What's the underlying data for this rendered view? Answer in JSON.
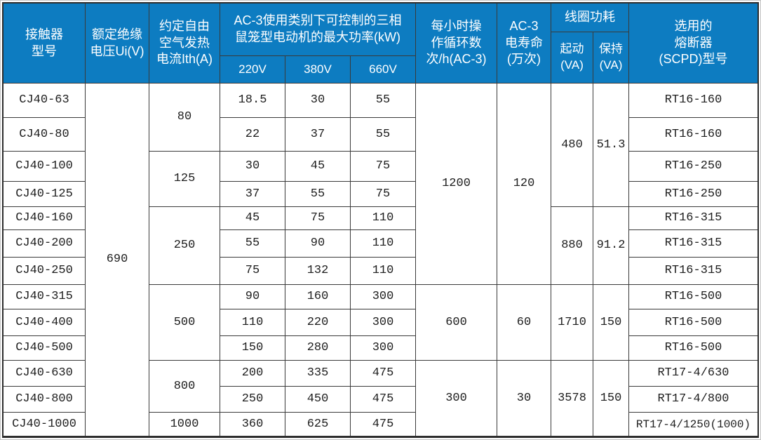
{
  "colors": {
    "header_bg": "#0d7cc1",
    "header_text": "#ffffff",
    "grid_line": "#3a3a3a",
    "body_text": "#1d1d1d"
  },
  "table": {
    "header": {
      "model": {
        "lines": [
          "接触器",
          "型号"
        ]
      },
      "insulation": {
        "lines": [
          "额定绝缘",
          "电压Ui(V)"
        ]
      },
      "ith": {
        "lines": [
          "约定自由",
          "空气发热",
          "电流Ith(A)"
        ]
      },
      "kw_group": {
        "lines": [
          "AC-3使用类别下可控制的三相",
          "鼠笼型电动机的最大功率(kW)"
        ]
      },
      "kw_cols": [
        "220V",
        "380V",
        "660V"
      ],
      "cycles": {
        "lines": [
          "每小时操",
          "作循环数",
          "次/h(AC-3)"
        ]
      },
      "life": {
        "lines": [
          "AC-3",
          "电寿命",
          "(万次)"
        ]
      },
      "coil": {
        "label": "线圈功耗"
      },
      "coil_start": {
        "lines": [
          "起动",
          "(VA)"
        ]
      },
      "coil_hold": {
        "lines": [
          "保持",
          "(VA)"
        ]
      },
      "fuse": {
        "lines": [
          "选用的",
          "熔断器",
          "(SCPD)型号"
        ]
      }
    },
    "merged": {
      "insulation_voltage": "690",
      "ith": [
        "80",
        "125",
        "250",
        "500",
        "800",
        "1000"
      ],
      "cycles": [
        "1200",
        "600",
        "300"
      ],
      "life": [
        "120",
        "60",
        "30"
      ],
      "coil_start": [
        "480",
        "880",
        "1710",
        "3578"
      ],
      "coil_hold": [
        "51.3",
        "91.2",
        "150",
        "150"
      ]
    },
    "rows": [
      {
        "model": "CJ40-63",
        "kw220": "18.5",
        "kw380": "30",
        "kw660": "55",
        "fuse": "RT16-160"
      },
      {
        "model": "CJ40-80",
        "kw220": "22",
        "kw380": "37",
        "kw660": "55",
        "fuse": "RT16-160"
      },
      {
        "model": "CJ40-100",
        "kw220": "30",
        "kw380": "45",
        "kw660": "75",
        "fuse": "RT16-250"
      },
      {
        "model": "CJ40-125",
        "kw220": "37",
        "kw380": "55",
        "kw660": "75",
        "fuse": "RT16-250"
      },
      {
        "model": "CJ40-160",
        "kw220": "45",
        "kw380": "75",
        "kw660": "110",
        "fuse": "RT16-315"
      },
      {
        "model": "CJ40-200",
        "kw220": "55",
        "kw380": "90",
        "kw660": "110",
        "fuse": "RT16-315"
      },
      {
        "model": "CJ40-250",
        "kw220": "75",
        "kw380": "132",
        "kw660": "110",
        "fuse": "RT16-315"
      },
      {
        "model": "CJ40-315",
        "kw220": "90",
        "kw380": "160",
        "kw660": "300",
        "fuse": "RT16-500"
      },
      {
        "model": "CJ40-400",
        "kw220": "110",
        "kw380": "220",
        "kw660": "300",
        "fuse": "RT16-500"
      },
      {
        "model": "CJ40-500",
        "kw220": "150",
        "kw380": "280",
        "kw660": "300",
        "fuse": "RT16-500"
      },
      {
        "model": "CJ40-630",
        "kw220": "200",
        "kw380": "335",
        "kw660": "475",
        "fuse": "RT17-4/630"
      },
      {
        "model": "CJ40-800",
        "kw220": "250",
        "kw380": "450",
        "kw660": "475",
        "fuse": "RT17-4/800"
      },
      {
        "model": "CJ40-1000",
        "kw220": "360",
        "kw380": "625",
        "kw660": "475",
        "fuse": "RT17-4/1250(1000)"
      }
    ]
  }
}
